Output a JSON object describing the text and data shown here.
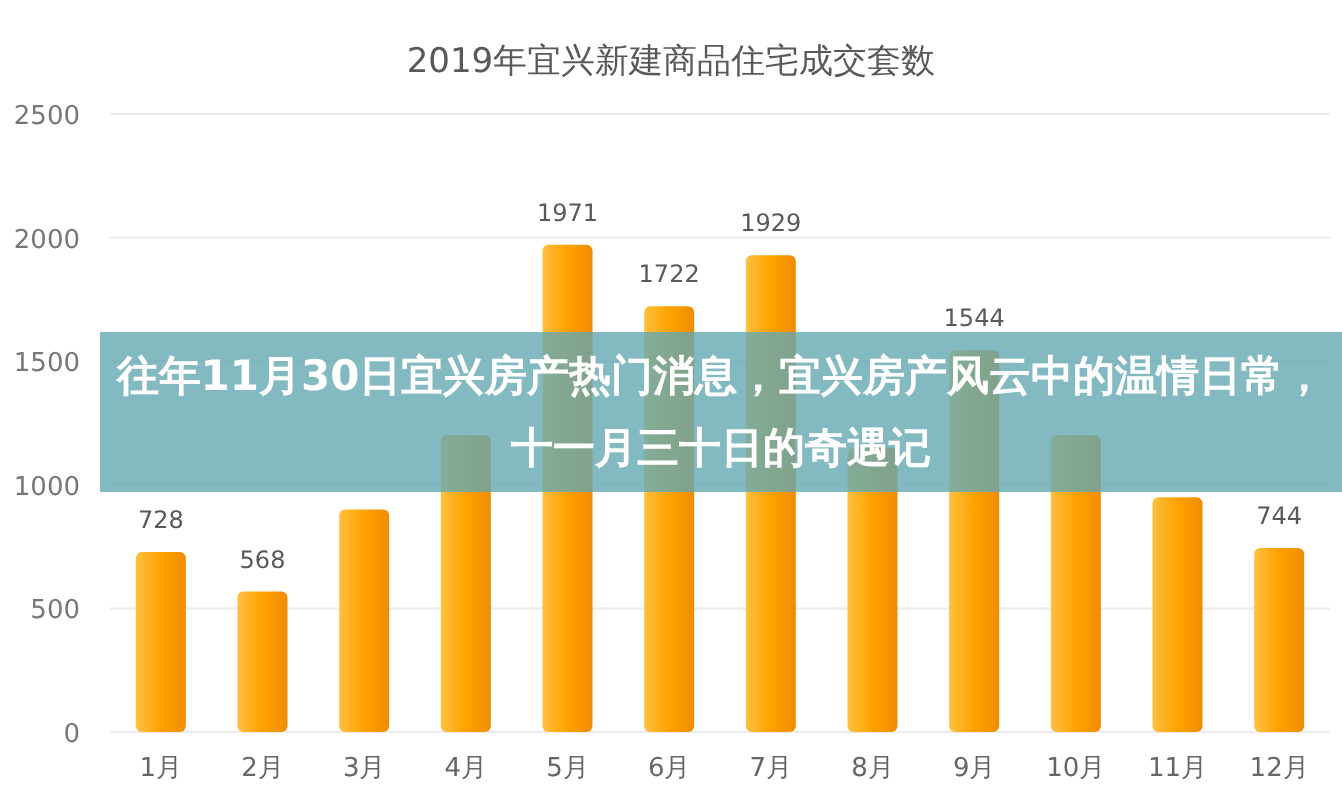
{
  "chart_data": {
    "type": "bar",
    "title": "2019年宜兴新建商品住宅成交套数",
    "categories": [
      "1月",
      "2月",
      "3月",
      "4月",
      "5月",
      "6月",
      "7月",
      "8月",
      "9月",
      "10月",
      "11月",
      "12月"
    ],
    "values": [
      728,
      568,
      900,
      1200,
      1971,
      1722,
      1929,
      1150,
      1544,
      1200,
      950,
      744
    ],
    "value_labels": [
      "728",
      "568",
      null,
      null,
      "1971",
      "1722",
      "1929",
      null,
      "1544",
      null,
      null,
      "744"
    ],
    "color": "#ffa200",
    "ylim": [
      0,
      2500
    ],
    "yticks": [
      0,
      500,
      1000,
      1500,
      2000,
      2500
    ],
    "grid": "y",
    "annotations": [
      "往年11月30日宜兴房产热门消息，宜兴房产风云中的温情日常，十一月三十日的奇遇记"
    ]
  }
}
